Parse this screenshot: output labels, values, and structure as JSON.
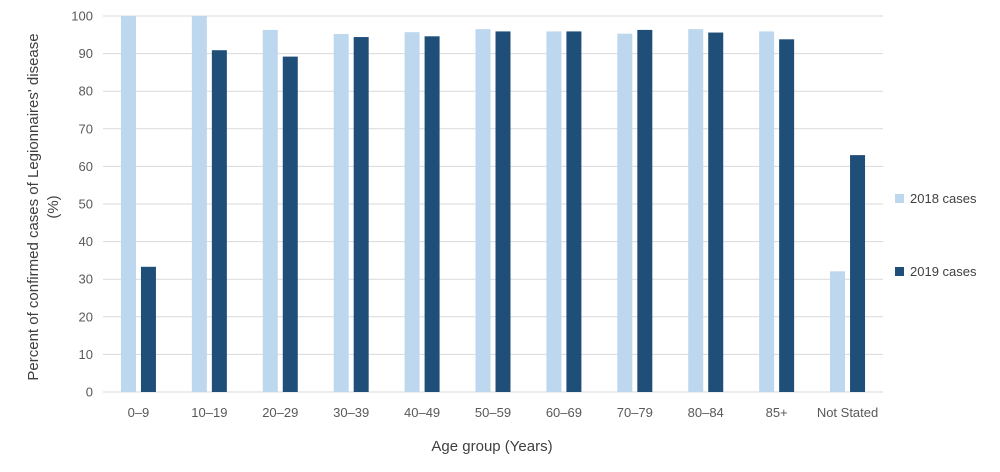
{
  "colors": {
    "series_2018": "#bdd7ee",
    "series_2019": "#1f4e79",
    "gridline": "#d9d9d9",
    "axis_text": "#595959"
  },
  "chart_data": {
    "type": "bar",
    "title": "",
    "xlabel": "Age group (Years)",
    "ylabel_lines": [
      "Percent of confirmed cases of Legionnaires' disease",
      "(%)"
    ],
    "ylim": [
      0,
      100
    ],
    "y_ticks": [
      0,
      10,
      20,
      30,
      40,
      50,
      60,
      70,
      80,
      90,
      100
    ],
    "grid": true,
    "legend_position": "right",
    "categories": [
      "0–9",
      "10–19",
      "20–29",
      "30–39",
      "40–49",
      "50–59",
      "60–69",
      "70–79",
      "80–84",
      "85+",
      "Not Stated"
    ],
    "series": [
      {
        "name": "2018 cases",
        "values": [
          100,
          100,
          96.3,
          95.2,
          95.7,
          96.5,
          95.9,
          95.3,
          96.5,
          95.9,
          32.1
        ]
      },
      {
        "name": "2019 cases",
        "values": [
          33.3,
          90.9,
          89.2,
          94.4,
          94.6,
          95.9,
          95.9,
          96.3,
          95.6,
          93.8,
          63.0
        ]
      }
    ]
  }
}
